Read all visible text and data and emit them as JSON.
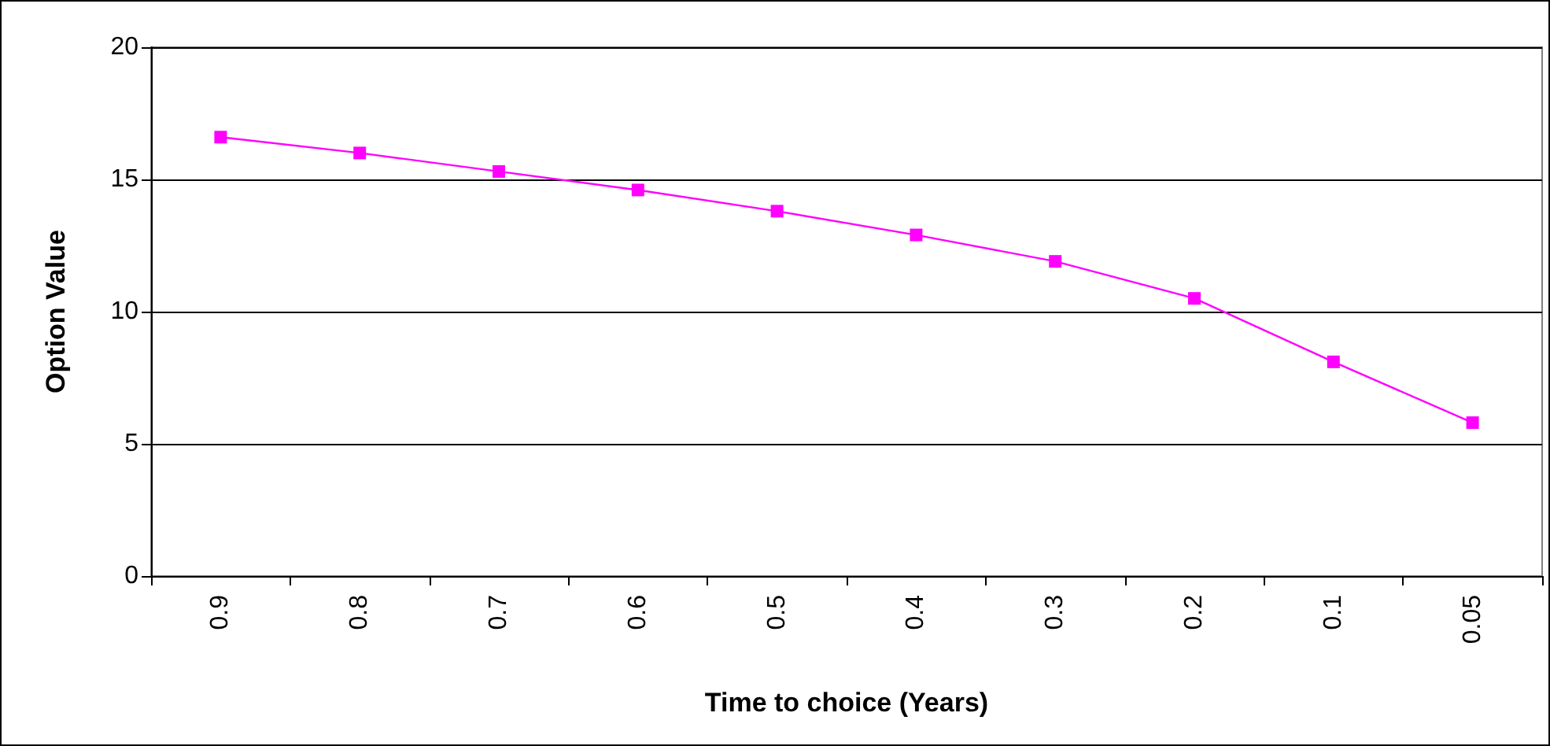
{
  "chart_data": {
    "type": "line",
    "xlabel": "Time to choice (Years)",
    "ylabel": "Option Value",
    "categories": [
      "0.9",
      "0.8",
      "0.7",
      "0.6",
      "0.5",
      "0.4",
      "0.3",
      "0.2",
      "0.1",
      "0.05"
    ],
    "series": [
      {
        "color": "#ff00ff",
        "values": [
          16.6,
          16.0,
          15.3,
          14.6,
          13.8,
          12.9,
          11.9,
          10.5,
          8.1,
          5.8
        ]
      }
    ],
    "ylim": [
      0,
      20
    ],
    "yticks": [
      0,
      5,
      10,
      15,
      20
    ],
    "grid": "y",
    "marker": "square",
    "line_style": "solid"
  }
}
